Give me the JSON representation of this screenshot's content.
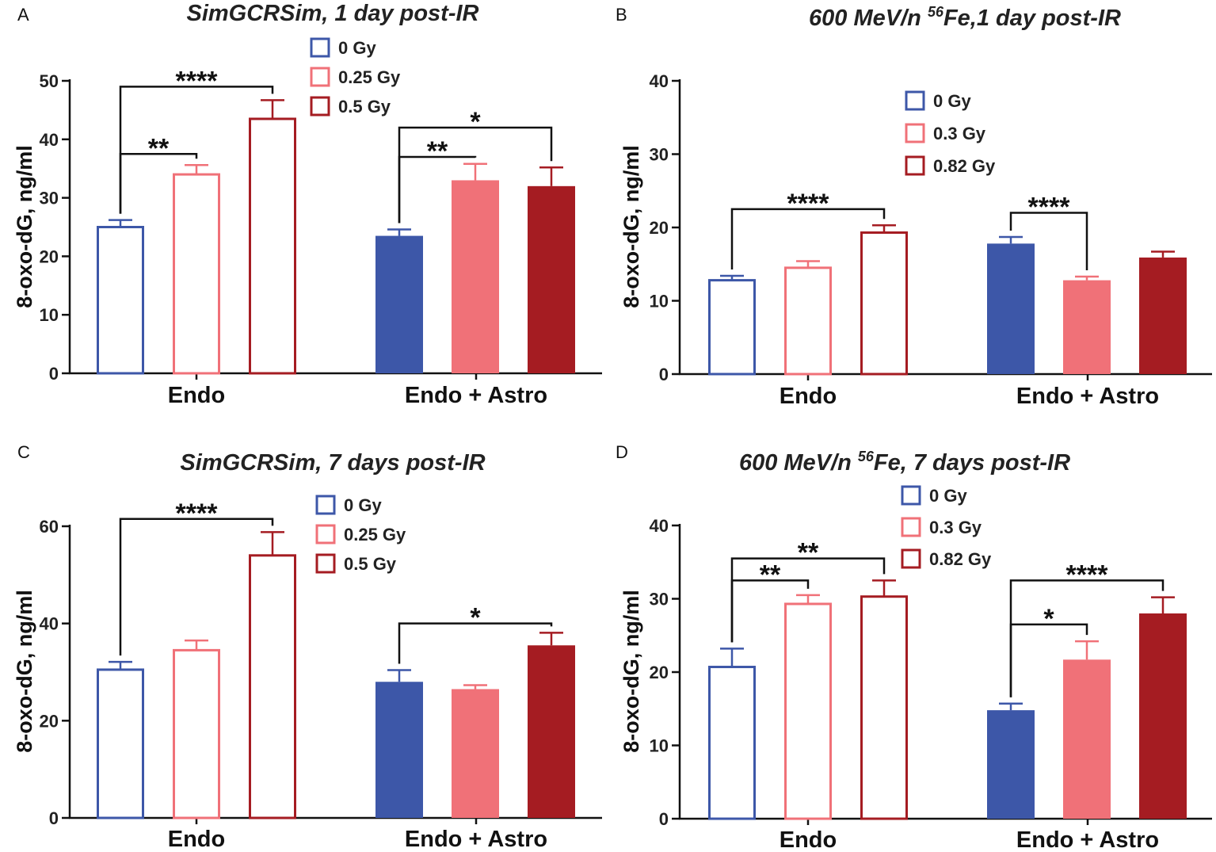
{
  "chart_data": [
    {
      "type": "bar",
      "panel": "A",
      "title": "SimGCRSim, 1 day post-IR",
      "ylabel": "8-oxo-dG, ng/ml",
      "xlabel": "",
      "ylim": [
        0,
        50
      ],
      "yticks": [
        0,
        10,
        20,
        30,
        40,
        50
      ],
      "categories": [
        "Endo",
        "Endo + Astro"
      ],
      "series": [
        {
          "name": "0 Gy",
          "color": "#3d57a8",
          "values": [
            25,
            23.5
          ],
          "errors": [
            1.2,
            1.1
          ]
        },
        {
          "name": "0.25 Gy",
          "color": "#f07178",
          "values": [
            34,
            33
          ],
          "errors": [
            1.6,
            2.8
          ]
        },
        {
          "name": "0.5 Gy",
          "color": "#a51c22",
          "values": [
            43.5,
            32
          ],
          "errors": [
            3.2,
            3.2
          ]
        }
      ],
      "fill": [
        "open",
        "solid"
      ],
      "legend": {
        "position": "top-center",
        "labels": [
          "0 Gy",
          "0.25 Gy",
          "0.5 Gy"
        ]
      },
      "annotations": [
        {
          "text": "****",
          "group": 0,
          "from": 0,
          "to": 2,
          "y": 49
        },
        {
          "text": "**",
          "group": 0,
          "from": 0,
          "to": 1,
          "y": 37.5
        },
        {
          "text": "*",
          "group": 1,
          "from": 0,
          "to": 2,
          "y": 42
        },
        {
          "text": "**",
          "group": 1,
          "from": 0,
          "to": 1,
          "y": 37
        }
      ]
    },
    {
      "type": "bar",
      "panel": "B",
      "title": "600 MeV/n",
      "title_sup": "56",
      "title_rest": "Fe,1 day post-IR",
      "ylabel": "8-oxo-dG, ng/ml",
      "xlabel": "",
      "ylim": [
        0,
        40
      ],
      "yticks": [
        0,
        10,
        20,
        30,
        40
      ],
      "categories": [
        "Endo",
        "Endo + Astro"
      ],
      "series": [
        {
          "name": "0 Gy",
          "color": "#3d57a8",
          "values": [
            12.8,
            17.8
          ],
          "errors": [
            0.6,
            0.9
          ]
        },
        {
          "name": "0.3 Gy",
          "color": "#f07178",
          "values": [
            14.5,
            12.8
          ],
          "errors": [
            0.9,
            0.5
          ]
        },
        {
          "name": "0.82 Gy",
          "color": "#a51c22",
          "values": [
            19.3,
            15.9
          ],
          "errors": [
            1.0,
            0.8
          ]
        }
      ],
      "fill": [
        "open",
        "solid"
      ],
      "legend": {
        "position": "top-center",
        "labels": [
          "0 Gy",
          "0.3 Gy",
          "0.82 Gy"
        ]
      },
      "annotations": [
        {
          "text": "****",
          "group": 0,
          "from": 0,
          "to": 2,
          "y": 22.5
        },
        {
          "text": "****",
          "group": 1,
          "from": 0,
          "to": 1,
          "y": 22
        }
      ]
    },
    {
      "type": "bar",
      "panel": "C",
      "title": "SimGCRSim, 7 days post-IR",
      "ylabel": "8-oxo-dG, ng/ml",
      "xlabel": "",
      "ylim": [
        0,
        60
      ],
      "yticks": [
        0,
        20,
        40,
        60
      ],
      "categories": [
        "Endo",
        "Endo + Astro"
      ],
      "series": [
        {
          "name": "0 Gy",
          "color": "#3d57a8",
          "values": [
            30.5,
            28
          ],
          "errors": [
            1.6,
            2.4
          ]
        },
        {
          "name": "0.25 Gy",
          "color": "#f07178",
          "values": [
            34.5,
            26.5
          ],
          "errors": [
            2.0,
            0.8
          ]
        },
        {
          "name": "0.5 Gy",
          "color": "#a51c22",
          "values": [
            54,
            35.5
          ],
          "errors": [
            4.8,
            2.6
          ]
        }
      ],
      "fill": [
        "open",
        "solid"
      ],
      "legend": {
        "position": "top-center",
        "labels": [
          "0 Gy",
          "0.25 Gy",
          "0.5 Gy"
        ]
      },
      "annotations": [
        {
          "text": "****",
          "group": 0,
          "from": 0,
          "to": 2,
          "y": 61.5
        },
        {
          "text": "*",
          "group": 1,
          "from": 0,
          "to": 2,
          "y": 40
        }
      ]
    },
    {
      "type": "bar",
      "panel": "D",
      "title": "600 MeV/n",
      "title_sup": "56",
      "title_rest": "Fe, 7 days post-IR",
      "ylabel": "8-oxo-dG, ng/ml",
      "xlabel": "",
      "ylim": [
        0,
        40
      ],
      "yticks": [
        0,
        10,
        20,
        30,
        40
      ],
      "categories": [
        "Endo",
        "Endo + Astro"
      ],
      "series": [
        {
          "name": "0 Gy",
          "color": "#3d57a8",
          "values": [
            20.7,
            14.8
          ],
          "errors": [
            2.5,
            0.9
          ]
        },
        {
          "name": "0.3 Gy",
          "color": "#f07178",
          "values": [
            29.3,
            21.7
          ],
          "errors": [
            1.2,
            2.5
          ]
        },
        {
          "name": "0.82 Gy",
          "color": "#a51c22",
          "values": [
            30.3,
            28
          ],
          "errors": [
            2.2,
            2.2
          ]
        }
      ],
      "fill": [
        "open",
        "solid"
      ],
      "legend": {
        "position": "top-center",
        "labels": [
          "0 Gy",
          "0.3 Gy",
          "0.82 Gy"
        ]
      },
      "annotations": [
        {
          "text": "**",
          "group": 0,
          "from": 0,
          "to": 2,
          "y": 35.5
        },
        {
          "text": "**",
          "group": 0,
          "from": 0,
          "to": 1,
          "y": 32.5
        },
        {
          "text": "****",
          "group": 1,
          "from": 0,
          "to": 2,
          "y": 32.5
        },
        {
          "text": "*",
          "group": 1,
          "from": 0,
          "to": 1,
          "y": 26.5
        }
      ]
    }
  ]
}
